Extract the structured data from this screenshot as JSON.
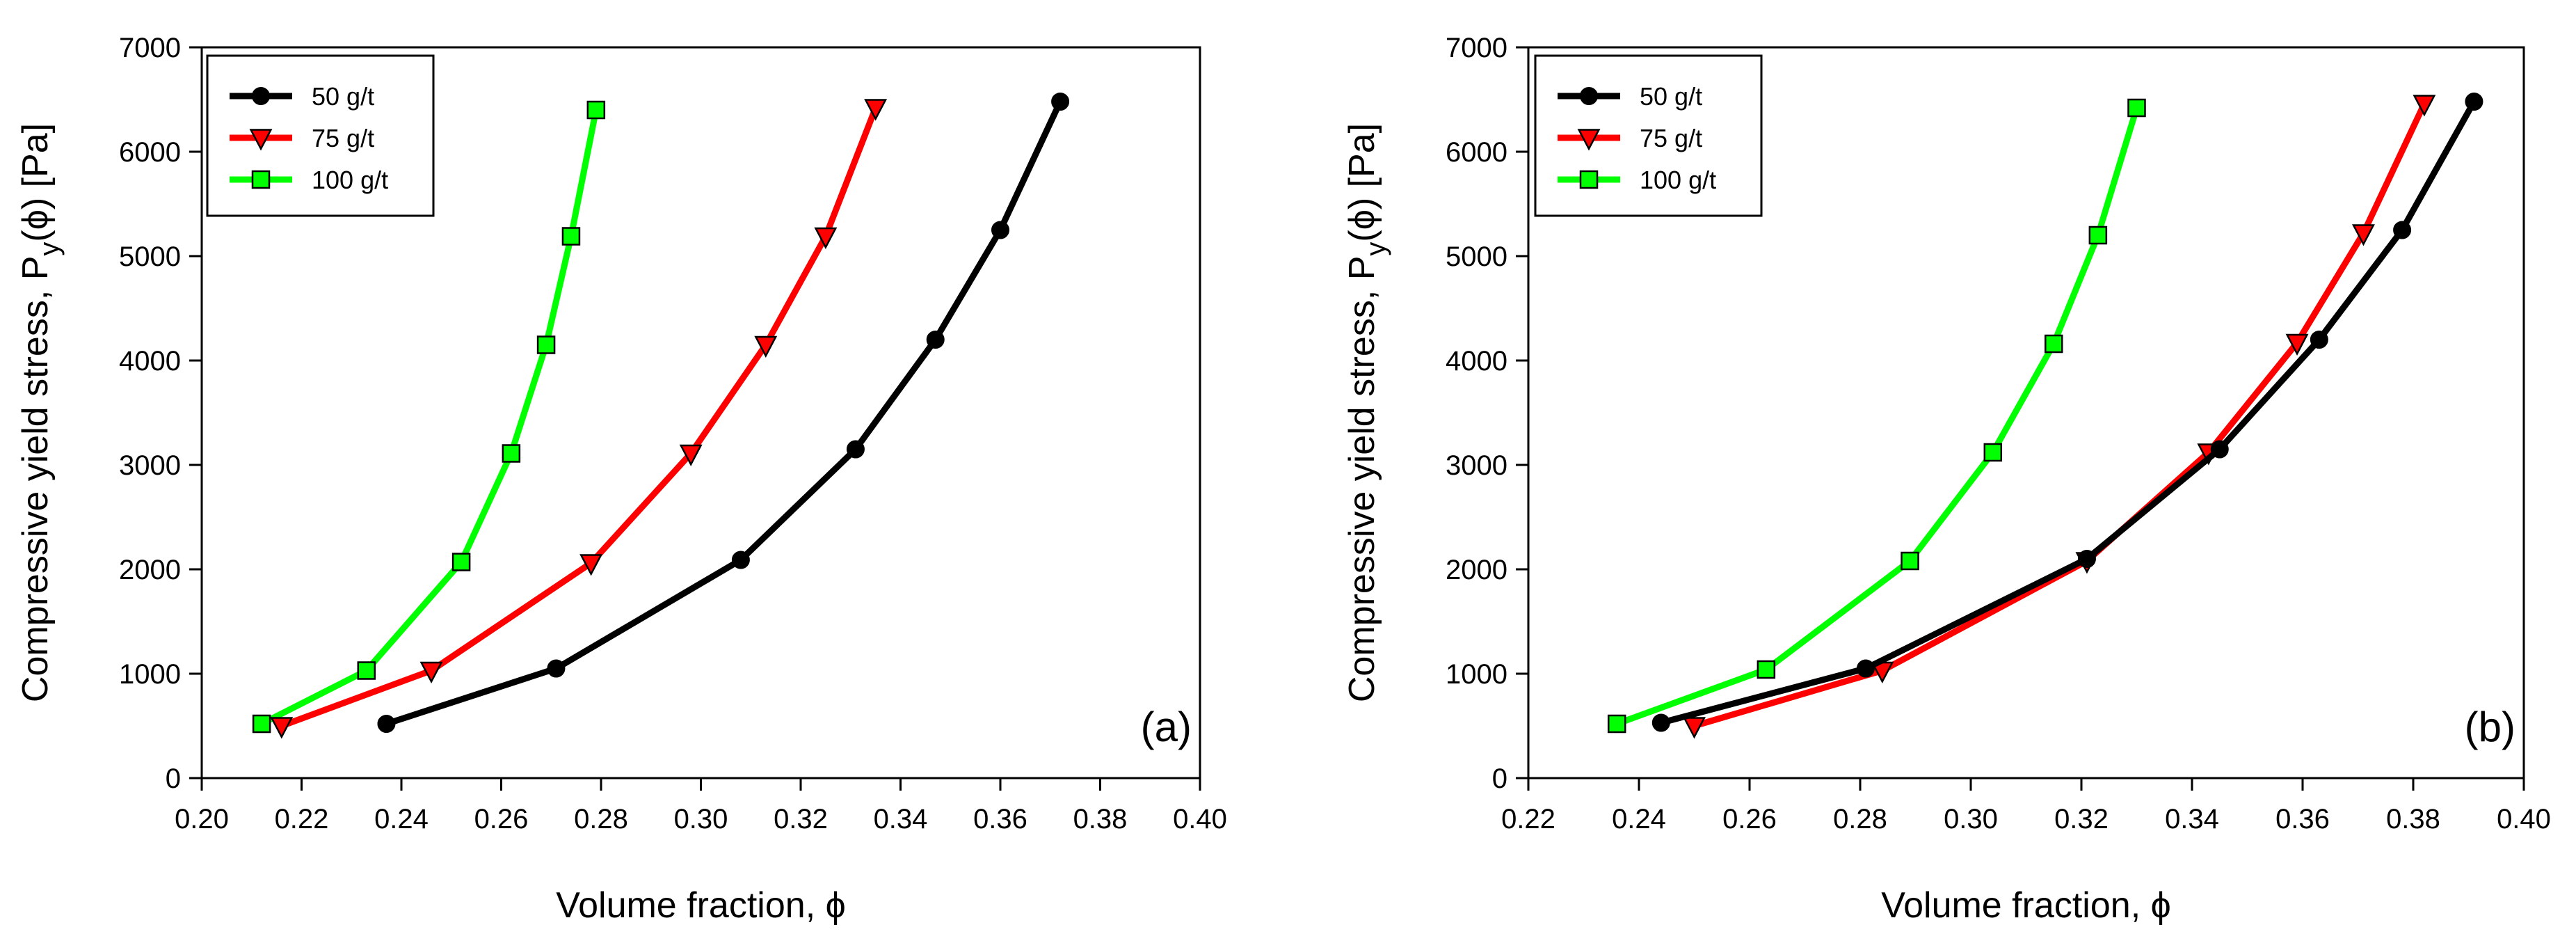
{
  "chart_data": [
    {
      "type": "line",
      "panel_label": "(a)",
      "xlabel": "Volume fraction, ϕ",
      "ylabel_main": "Compressive yield stress, P",
      "ylabel_sub": "y",
      "ylabel_tail": "(ϕ) [Pa]",
      "xlim": [
        0.2,
        0.4
      ],
      "ylim": [
        0,
        7000
      ],
      "xticks": [
        "0.20",
        "0.22",
        "0.24",
        "0.26",
        "0.28",
        "0.30",
        "0.32",
        "0.34",
        "0.36",
        "0.38",
        "0.40"
      ],
      "yticks": [
        "0",
        "1000",
        "2000",
        "3000",
        "4000",
        "5000",
        "6000",
        "7000"
      ],
      "legend_position": "top-left",
      "series": [
        {
          "name": "50 g/t",
          "color": "#000000",
          "marker": "circle",
          "x": [
            0.237,
            0.271,
            0.308,
            0.331,
            0.347,
            0.36,
            0.372
          ],
          "y": [
            520,
            1050,
            2090,
            3150,
            4200,
            5250,
            6480
          ]
        },
        {
          "name": "75 g/t",
          "color": "#ff0000",
          "marker": "triangle-down",
          "x": [
            0.216,
            0.246,
            0.278,
            0.298,
            0.313,
            0.325,
            0.335
          ],
          "y": [
            500,
            1030,
            2060,
            3110,
            4150,
            5190,
            6420
          ]
        },
        {
          "name": "100 g/t",
          "color": "#00ff00",
          "marker": "square",
          "x": [
            0.212,
            0.233,
            0.252,
            0.262,
            0.269,
            0.274,
            0.279
          ],
          "y": [
            520,
            1030,
            2070,
            3110,
            4150,
            5190,
            6400
          ]
        }
      ]
    },
    {
      "type": "line",
      "panel_label": "(b)",
      "xlabel": "Volume fraction, ϕ",
      "ylabel_main": "Compressive yield stress, P",
      "ylabel_sub": "y",
      "ylabel_tail": "(ϕ) [Pa]",
      "xlim": [
        0.22,
        0.4
      ],
      "ylim": [
        0,
        7000
      ],
      "xticks": [
        "0.22",
        "0.24",
        "0.26",
        "0.28",
        "0.30",
        "0.32",
        "0.34",
        "0.36",
        "0.38",
        "0.40"
      ],
      "yticks": [
        "0",
        "1000",
        "2000",
        "3000",
        "4000",
        "5000",
        "6000",
        "7000"
      ],
      "legend_position": "top-left",
      "series": [
        {
          "name": "50 g/t",
          "color": "#000000",
          "marker": "circle",
          "x": [
            0.244,
            0.281,
            0.321,
            0.345,
            0.363,
            0.378,
            0.391
          ],
          "y": [
            530,
            1050,
            2100,
            3150,
            4200,
            5250,
            6480
          ]
        },
        {
          "name": "75 g/t",
          "color": "#ff0000",
          "marker": "triangle-down",
          "x": [
            0.25,
            0.284,
            0.321,
            0.343,
            0.359,
            0.371,
            0.382
          ],
          "y": [
            500,
            1030,
            2080,
            3120,
            4170,
            5220,
            6460
          ]
        },
        {
          "name": "100 g/t",
          "color": "#00ff00",
          "marker": "square",
          "x": [
            0.236,
            0.263,
            0.289,
            0.304,
            0.315,
            0.323,
            0.33
          ],
          "y": [
            520,
            1040,
            2080,
            3120,
            4160,
            5200,
            6420
          ]
        }
      ]
    }
  ]
}
